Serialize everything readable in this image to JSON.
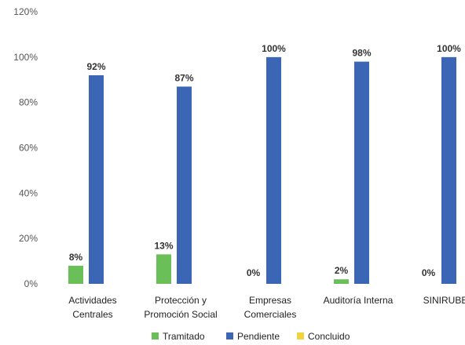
{
  "chart_data": {
    "type": "bar",
    "title": "",
    "xlabel": "",
    "ylabel": "",
    "ylim": [
      0,
      120
    ],
    "y_ticks": [
      "0%",
      "20%",
      "40%",
      "60%",
      "80%",
      "100%",
      "120%"
    ],
    "grid": false,
    "legend_position": "bottom",
    "categories": [
      [
        "Actividades",
        "Centrales"
      ],
      [
        "Protección y",
        "Promoción Social"
      ],
      [
        "Empresas",
        "Comerciales"
      ],
      [
        "Auditoría Interna"
      ],
      [
        "SINIRUBE"
      ]
    ],
    "series": [
      {
        "name": "Tramitado",
        "color": "#6BBF59",
        "values": [
          8,
          13,
          0,
          2,
          0
        ],
        "labels": [
          "8%",
          "13%",
          "0%",
          "2%",
          "0%"
        ]
      },
      {
        "name": "Pendiente",
        "color": "#3A66B5",
        "values": [
          92,
          87,
          100,
          98,
          100
        ],
        "labels": [
          "92%",
          "87%",
          "100%",
          "98%",
          "100%"
        ]
      },
      {
        "name": "Concluido",
        "color": "#F2D33C",
        "values": [
          0,
          0,
          0,
          0,
          0
        ],
        "labels": [
          "",
          "",
          "",
          "",
          ""
        ]
      }
    ]
  }
}
